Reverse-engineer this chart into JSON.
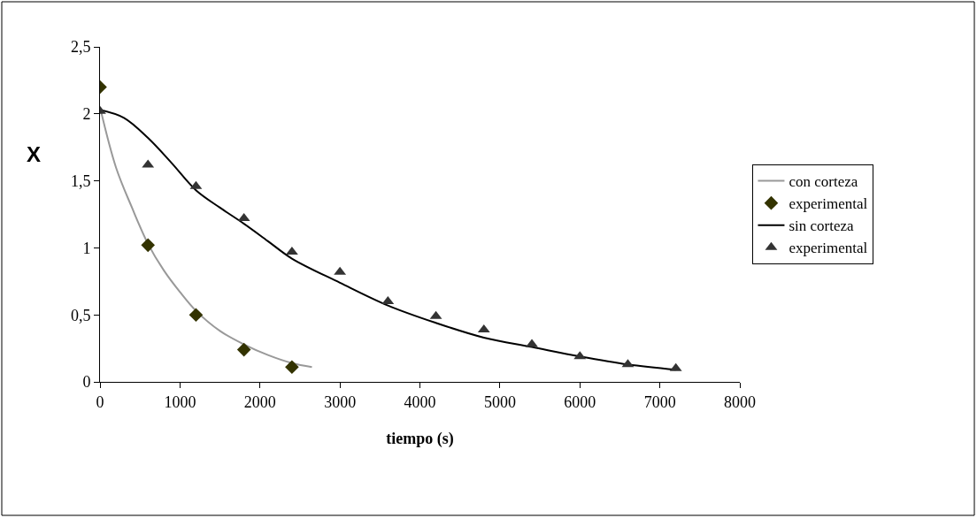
{
  "chart_data": {
    "type": "line",
    "xlabel": "tiempo (s)",
    "ylabel": "X",
    "xlim": [
      0,
      8000
    ],
    "xticks": [
      0,
      1000,
      2000,
      3000,
      4000,
      5000,
      6000,
      7000,
      8000
    ],
    "ylim": [
      0,
      2.5
    ],
    "yticks": [
      0,
      {
        "value": 0.5,
        "label": "0,5"
      },
      1,
      {
        "value": 1.5,
        "label": "1,5"
      },
      2,
      {
        "value": 2.5,
        "label": "2,5"
      }
    ],
    "legend": "right",
    "series": [
      {
        "name": "con corteza",
        "color": "#999999",
        "marker": "none",
        "x": [
          0,
          200,
          400,
          600,
          800,
          1000,
          1200,
          1500,
          1800,
          2100,
          2400,
          2650
        ],
        "values": [
          2.05,
          1.6,
          1.3,
          1.03,
          0.83,
          0.67,
          0.53,
          0.38,
          0.28,
          0.2,
          0.14,
          0.11
        ]
      },
      {
        "name": "experimental",
        "type": "scatter",
        "color": "#333300",
        "marker": "diamond",
        "x": [
          0,
          600,
          1200,
          1800,
          2400
        ],
        "values": [
          2.2,
          1.02,
          0.5,
          0.24,
          0.11
        ]
      },
      {
        "name": "sin corteza",
        "color": "#000000",
        "marker": "none",
        "x": [
          0,
          300,
          600,
          900,
          1200,
          1500,
          1800,
          2100,
          2400,
          3000,
          3600,
          4200,
          4800,
          5400,
          6000,
          6600,
          7200
        ],
        "values": [
          2.03,
          1.97,
          1.82,
          1.63,
          1.43,
          1.3,
          1.18,
          1.05,
          0.92,
          0.74,
          0.57,
          0.44,
          0.33,
          0.26,
          0.19,
          0.13,
          0.09
        ]
      },
      {
        "name": "experimental",
        "type": "scatter",
        "color": "#333333",
        "marker": "triangle",
        "x": [
          0,
          600,
          1200,
          1800,
          2400,
          3000,
          3600,
          4200,
          4800,
          5400,
          6000,
          6600,
          7200
        ],
        "values": [
          2.02,
          1.62,
          1.46,
          1.22,
          0.97,
          0.82,
          0.6,
          0.49,
          0.39,
          0.28,
          0.19,
          0.13,
          0.1
        ]
      }
    ]
  }
}
